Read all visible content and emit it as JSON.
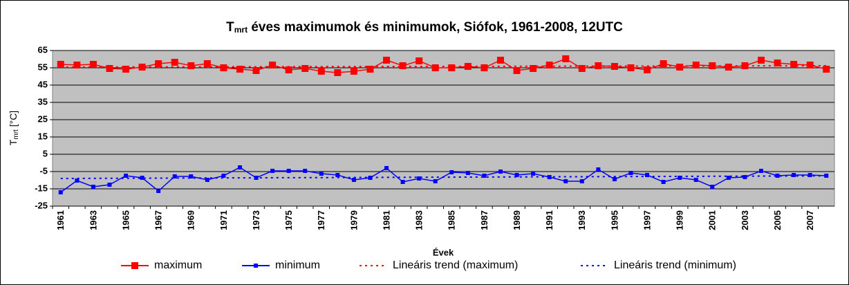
{
  "chart_data": {
    "type": "line",
    "title": {
      "symbol": "T",
      "subscript": "mrt",
      "text": " éves maximumok és minimumok, Siófok, 1961-2008, 12UTC"
    },
    "y_label": {
      "symbol": "T",
      "subscript": "mrt",
      "text": " [°C]"
    },
    "x_label": "Évek",
    "categories": [
      "1961",
      null,
      "1963",
      null,
      "1965",
      null,
      "1967",
      null,
      "1969",
      null,
      "1971",
      null,
      "1973",
      null,
      "1975",
      null,
      "1977",
      null,
      "1979",
      null,
      "1981",
      null,
      "1983",
      null,
      "1985",
      null,
      "1987",
      null,
      "1989",
      null,
      "1991",
      null,
      "1993",
      null,
      "1995",
      null,
      "1997",
      null,
      "1999",
      null,
      "2001",
      null,
      "2003",
      null,
      "2005",
      null,
      "2007",
      null
    ],
    "ylim": [
      -25,
      65
    ],
    "yticks": [
      -25,
      -15,
      -5,
      5,
      15,
      25,
      35,
      45,
      55,
      65
    ],
    "grid": true,
    "legend": "bottom",
    "series": [
      {
        "name": "maximum",
        "color": "#ff0000",
        "marker": "square",
        "values": [
          57,
          56.6,
          57,
          54.6,
          54.2,
          55.4,
          57.4,
          58.2,
          56.2,
          57.4,
          55,
          54.2,
          53.4,
          56.6,
          53.8,
          54.6,
          53,
          52.2,
          53,
          54.2,
          59.4,
          56.2,
          59,
          55,
          55,
          55.8,
          55,
          59.4,
          53.4,
          54.6,
          56.6,
          60.2,
          54.6,
          56.2,
          55.8,
          55,
          53.8,
          57.4,
          55.4,
          56.6,
          56.2,
          55.4,
          56.2,
          59.4,
          57.8,
          57,
          56.6,
          54.2
        ]
      },
      {
        "name": "minimum",
        "color": "#0000ff",
        "marker": "square",
        "values": [
          -17,
          -10.2,
          -13.8,
          -12.6,
          -7.4,
          -8.6,
          -16.2,
          -7.8,
          -7.8,
          -9.8,
          -7.4,
          -2.6,
          -8.6,
          -4.6,
          -4.6,
          -4.6,
          -6.2,
          -7,
          -9.8,
          -8.6,
          -3,
          -11,
          -9,
          -10.6,
          -5.4,
          -5.8,
          -7.4,
          -5,
          -7,
          -6.2,
          -8.2,
          -10.6,
          -10.6,
          -3.8,
          -9.4,
          -5.8,
          -7,
          -11,
          -8.6,
          -9.8,
          -13.8,
          -8.6,
          -8.2,
          -4.6,
          -7.4,
          -7,
          -7,
          -7.4
        ]
      },
      {
        "name": "Lineáris trend (maximum)",
        "color": "#ff0000",
        "dashed": true,
        "values": [
          55.4,
          55.42,
          55.43,
          55.45,
          55.47,
          55.49,
          55.5,
          55.52,
          55.54,
          55.55,
          55.57,
          55.59,
          55.6,
          55.62,
          55.64,
          55.66,
          55.67,
          55.69,
          55.71,
          55.72,
          55.74,
          55.76,
          55.77,
          55.79,
          55.81,
          55.83,
          55.84,
          55.86,
          55.88,
          55.89,
          55.91,
          55.93,
          55.94,
          55.96,
          55.98,
          56.0,
          56.01,
          56.03,
          56.05,
          56.06,
          56.08,
          56.1,
          56.11,
          56.13,
          56.15,
          56.17,
          56.18,
          56.2
        ]
      },
      {
        "name": "Lineáris trend (minimum)",
        "color": "#0000ff",
        "dashed": true,
        "values": [
          -9.0,
          -8.97,
          -8.94,
          -8.9,
          -8.87,
          -8.84,
          -8.81,
          -8.78,
          -8.74,
          -8.71,
          -8.68,
          -8.65,
          -8.62,
          -8.58,
          -8.55,
          -8.52,
          -8.49,
          -8.46,
          -8.42,
          -8.39,
          -8.36,
          -8.33,
          -8.3,
          -8.26,
          -8.23,
          -8.2,
          -8.17,
          -8.14,
          -8.1,
          -8.07,
          -8.04,
          -8.01,
          -7.98,
          -7.94,
          -7.91,
          -7.88,
          -7.85,
          -7.82,
          -7.78,
          -7.75,
          -7.72,
          -7.69,
          -7.66,
          -7.62,
          -7.59,
          -7.56,
          -7.53,
          -7.5
        ]
      }
    ]
  }
}
